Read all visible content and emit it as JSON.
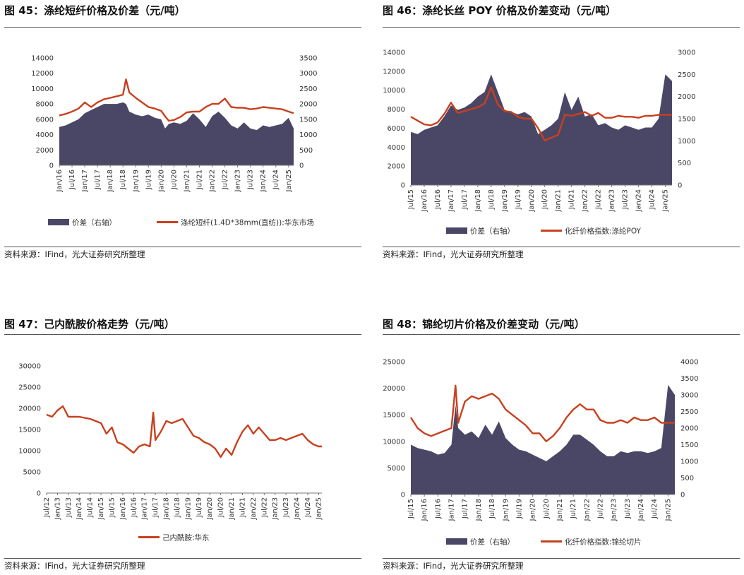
{
  "panels": [
    {
      "title": "图 45：涤纶短纤价格及价差（元/吨）",
      "source": "资料来源：IFind，光大证券研究所整理"
    },
    {
      "title": "图 46：涤纶长丝 POY 价格及价差变动（元/吨）",
      "source": "资料来源：IFind，光大证券研究所整理"
    },
    {
      "title": "图 47：己内酰胺价格走势（元/吨）",
      "source": "资料来源：IFind，光大证券研究所整理"
    },
    {
      "title": "图 48：锦纶切片价格及价差变动（元/吨）",
      "source": "资料来源：IFind，光大证券研究所整理"
    }
  ],
  "chart_data": [
    {
      "type": "area",
      "title": "图 45：涤纶短纤价格及价差（元/吨）",
      "x_ticks": [
        "Jan/16",
        "Jul/16",
        "Jan/17",
        "Jul/17",
        "Jan/18",
        "Jul/18",
        "Jan/19",
        "Jul/19",
        "Jan/20",
        "Jul/20",
        "Jan/21",
        "Jul/21",
        "Jan/22",
        "Jul/22",
        "Jan/23",
        "Jul/23",
        "Jan/24",
        "Jul/24",
        "Jan/25"
      ],
      "x": [
        2016.0,
        2016.25,
        2016.5,
        2016.75,
        2017.0,
        2017.25,
        2017.5,
        2017.75,
        2018.0,
        2018.25,
        2018.5,
        2018.62,
        2018.75,
        2019.0,
        2019.25,
        2019.5,
        2019.75,
        2020.0,
        2020.15,
        2020.3,
        2020.5,
        2020.75,
        2021.0,
        2021.25,
        2021.5,
        2021.75,
        2022.0,
        2022.25,
        2022.5,
        2022.75,
        2023.0,
        2023.25,
        2023.5,
        2023.75,
        2024.0,
        2024.25,
        2024.5,
        2024.75,
        2025.0,
        2025.2
      ],
      "y_left_range": [
        0,
        14000
      ],
      "y_left_ticks": [
        0,
        2000,
        4000,
        6000,
        8000,
        10000,
        12000,
        14000
      ],
      "y_right_range": [
        0,
        3500
      ],
      "y_right_ticks": [
        0,
        500,
        1000,
        1500,
        2000,
        2500,
        3000,
        3500
      ],
      "axis": "right",
      "series": [
        {
          "name": "价差（右轴）",
          "color": "#4a4766",
          "type": "area",
          "axis": "right",
          "values": [
            1250,
            1300,
            1400,
            1500,
            1700,
            1800,
            1900,
            2000,
            2000,
            2000,
            2050,
            2000,
            1750,
            1650,
            1600,
            1650,
            1550,
            1500,
            1200,
            1350,
            1400,
            1350,
            1450,
            1700,
            1500,
            1250,
            1600,
            1750,
            1550,
            1300,
            1200,
            1400,
            1200,
            1150,
            1300,
            1250,
            1300,
            1350,
            1550,
            1200
          ]
        },
        {
          "name": "涤纶短纤(1.4D*38mm(直纺)):华东市场",
          "color": "#c8401e",
          "type": "line",
          "axis": "left",
          "values": [
            6500,
            6700,
            7000,
            7400,
            8200,
            7600,
            8200,
            8600,
            8800,
            9000,
            9200,
            11200,
            9500,
            8800,
            8200,
            7600,
            7400,
            7100,
            6400,
            5800,
            5900,
            6300,
            6900,
            7000,
            7000,
            7600,
            8000,
            8000,
            8700,
            7600,
            7500,
            7500,
            7300,
            7400,
            7600,
            7500,
            7400,
            7300,
            7000,
            6800
          ]
        }
      ]
    },
    {
      "type": "area",
      "title": "图 46：涤纶长丝 POY 价格及价差变动（元/吨）",
      "x_ticks": [
        "Jul/15",
        "Jan/16",
        "Jul/16",
        "Jan/17",
        "Jul/17",
        "Jan/18",
        "Jul/18",
        "Jan/19",
        "Jul/19",
        "Jan/20",
        "Jul/20",
        "Jan/21",
        "Jul/21",
        "Jan/22",
        "Jul/22",
        "Jan/23",
        "Jul/23",
        "Jan/24",
        "Jul/24",
        "Jan/25"
      ],
      "x": [
        2015.5,
        2015.75,
        2016.0,
        2016.25,
        2016.5,
        2016.75,
        2017.0,
        2017.25,
        2017.5,
        2017.75,
        2018.0,
        2018.25,
        2018.5,
        2018.75,
        2019.0,
        2019.25,
        2019.5,
        2019.75,
        2020.0,
        2020.25,
        2020.5,
        2020.75,
        2021.0,
        2021.25,
        2021.5,
        2021.75,
        2022.0,
        2022.25,
        2022.5,
        2022.75,
        2023.0,
        2023.25,
        2023.5,
        2023.75,
        2024.0,
        2024.25,
        2024.5,
        2024.75,
        2025.0,
        2025.25
      ],
      "y_left_range": [
        0,
        14000
      ],
      "y_left_ticks": [
        0,
        2000,
        4000,
        6000,
        8000,
        10000,
        12000,
        14000
      ],
      "y_right_range": [
        0,
        3000
      ],
      "y_right_ticks": [
        0,
        500,
        1000,
        1500,
        2000,
        2500,
        3000
      ],
      "series": [
        {
          "name": "价差（右轴）",
          "color": "#4a4766",
          "type": "area",
          "axis": "right",
          "values": [
            1200,
            1150,
            1250,
            1300,
            1350,
            1550,
            1800,
            1700,
            1750,
            1850,
            2000,
            2100,
            2500,
            2100,
            1700,
            1650,
            1600,
            1650,
            1550,
            1150,
            1250,
            1350,
            1500,
            2100,
            1700,
            2000,
            1550,
            1600,
            1350,
            1400,
            1300,
            1250,
            1350,
            1300,
            1250,
            1300,
            1300,
            1500,
            2500,
            2350
          ]
        },
        {
          "name": "化纤价格指数:涤纶POY",
          "color": "#c8401e",
          "type": "line",
          "axis": "left",
          "values": [
            7200,
            6800,
            6400,
            6300,
            6600,
            7500,
            8700,
            7600,
            7800,
            8000,
            8200,
            8600,
            10300,
            8500,
            7800,
            7700,
            7200,
            7000,
            7000,
            6000,
            4700,
            5000,
            5300,
            7400,
            7300,
            7500,
            7700,
            7300,
            7600,
            7100,
            7100,
            7300,
            7200,
            7200,
            7100,
            7300,
            7300,
            7400,
            7400,
            7400
          ]
        }
      ]
    },
    {
      "type": "line",
      "title": "图 47：己内酰胺价格走势（元/吨）",
      "x_ticks": [
        "Jul/12",
        "Jan/13",
        "Jul/13",
        "Jan/14",
        "Jul/14",
        "Jan/15",
        "Jul/15",
        "Jan/16",
        "Jul/16",
        "Jan/17",
        "Jul/17",
        "Jan/18",
        "Jul/18",
        "Jan/19",
        "Jul/19",
        "Jan/20",
        "Jul/20",
        "Jan/21",
        "Jul/21",
        "Jan/22",
        "Jul/22",
        "Jan/23",
        "Jul/23",
        "Jan/24",
        "Jul/24",
        "Jan/25"
      ],
      "x": [
        2012.5,
        2012.75,
        2013.0,
        2013.25,
        2013.5,
        2014.0,
        2014.5,
        2015.0,
        2015.25,
        2015.5,
        2015.75,
        2016.0,
        2016.25,
        2016.5,
        2016.75,
        2017.0,
        2017.25,
        2017.4,
        2017.5,
        2017.75,
        2018.0,
        2018.25,
        2018.5,
        2018.75,
        2019.0,
        2019.25,
        2019.5,
        2019.75,
        2020.0,
        2020.25,
        2020.5,
        2020.75,
        2021.0,
        2021.25,
        2021.5,
        2021.75,
        2022.0,
        2022.25,
        2022.5,
        2022.75,
        2023.0,
        2023.25,
        2023.5,
        2023.75,
        2024.0,
        2024.25,
        2024.5,
        2024.75,
        2025.0,
        2025.15
      ],
      "y_range": [
        0,
        30000
      ],
      "y_ticks": [
        0,
        5000,
        10000,
        15000,
        20000,
        25000,
        30000
      ],
      "series": [
        {
          "name": "己内酰胺:华东",
          "color": "#c8401e",
          "values": [
            18500,
            18000,
            19500,
            20500,
            18000,
            18000,
            17500,
            16500,
            14000,
            15500,
            12000,
            11500,
            10500,
            9500,
            11000,
            11500,
            11000,
            19000,
            12500,
            14500,
            17000,
            16500,
            17000,
            17500,
            15500,
            13500,
            13000,
            12000,
            11500,
            10500,
            8500,
            10500,
            9000,
            12000,
            14500,
            16000,
            14000,
            15500,
            14000,
            12500,
            12500,
            13000,
            12500,
            13000,
            13500,
            14000,
            12500,
            11500,
            11000,
            11000
          ]
        }
      ]
    },
    {
      "type": "area",
      "title": "图 48：锦纶切片价格及价差变动（元/吨）",
      "x_ticks": [
        "Jul/15",
        "Jan/16",
        "Jul/16",
        "Jan/17",
        "Jul/17",
        "Jan/18",
        "Jul/18",
        "Jan/19",
        "Jul/19",
        "Jan/20",
        "Jul/20",
        "Jan/21",
        "Jul/21",
        "Jan/22",
        "Jul/22",
        "Jan/23",
        "Jul/23",
        "Jan/24",
        "Jul/24",
        "Jan/25"
      ],
      "x": [
        2015.5,
        2015.75,
        2016.0,
        2016.25,
        2016.5,
        2016.75,
        2017.0,
        2017.15,
        2017.25,
        2017.5,
        2017.75,
        2018.0,
        2018.25,
        2018.5,
        2018.75,
        2019.0,
        2019.25,
        2019.5,
        2019.75,
        2020.0,
        2020.25,
        2020.5,
        2020.75,
        2021.0,
        2021.25,
        2021.5,
        2021.75,
        2022.0,
        2022.25,
        2022.5,
        2022.75,
        2023.0,
        2023.25,
        2023.5,
        2023.75,
        2024.0,
        2024.25,
        2024.5,
        2024.75,
        2025.0,
        2025.25
      ],
      "y_left_range": [
        0,
        25000
      ],
      "y_left_ticks": [
        0,
        5000,
        10000,
        15000,
        20000,
        25000
      ],
      "y_right_range": [
        0,
        4000
      ],
      "y_right_ticks": [
        0,
        500,
        1000,
        1500,
        2000,
        2500,
        3000,
        3500,
        4000
      ],
      "series": [
        {
          "name": "价差（右轴）",
          "color": "#4a4766",
          "type": "area",
          "axis": "right",
          "values": [
            1500,
            1400,
            1350,
            1300,
            1200,
            1250,
            1500,
            2700,
            2000,
            1800,
            1900,
            1700,
            2100,
            1800,
            2200,
            1700,
            1500,
            1350,
            1300,
            1200,
            1100,
            1000,
            1150,
            1300,
            1500,
            1800,
            1800,
            1650,
            1500,
            1300,
            1150,
            1150,
            1300,
            1250,
            1300,
            1300,
            1250,
            1300,
            1400,
            3300,
            3000
          ]
        },
        {
          "name": "化纤价格指数:锦纶切片",
          "color": "#c8401e",
          "type": "line",
          "axis": "left",
          "values": [
            14500,
            12500,
            11500,
            11000,
            11500,
            12000,
            12500,
            20500,
            13500,
            17500,
            18500,
            18000,
            18500,
            19000,
            18000,
            16000,
            15000,
            14000,
            13000,
            11500,
            11500,
            10000,
            11000,
            12500,
            14500,
            16000,
            17000,
            16000,
            16000,
            14000,
            13500,
            13500,
            14000,
            13500,
            14500,
            14000,
            14000,
            14500,
            13500,
            13500,
            13500
          ]
        }
      ]
    }
  ]
}
